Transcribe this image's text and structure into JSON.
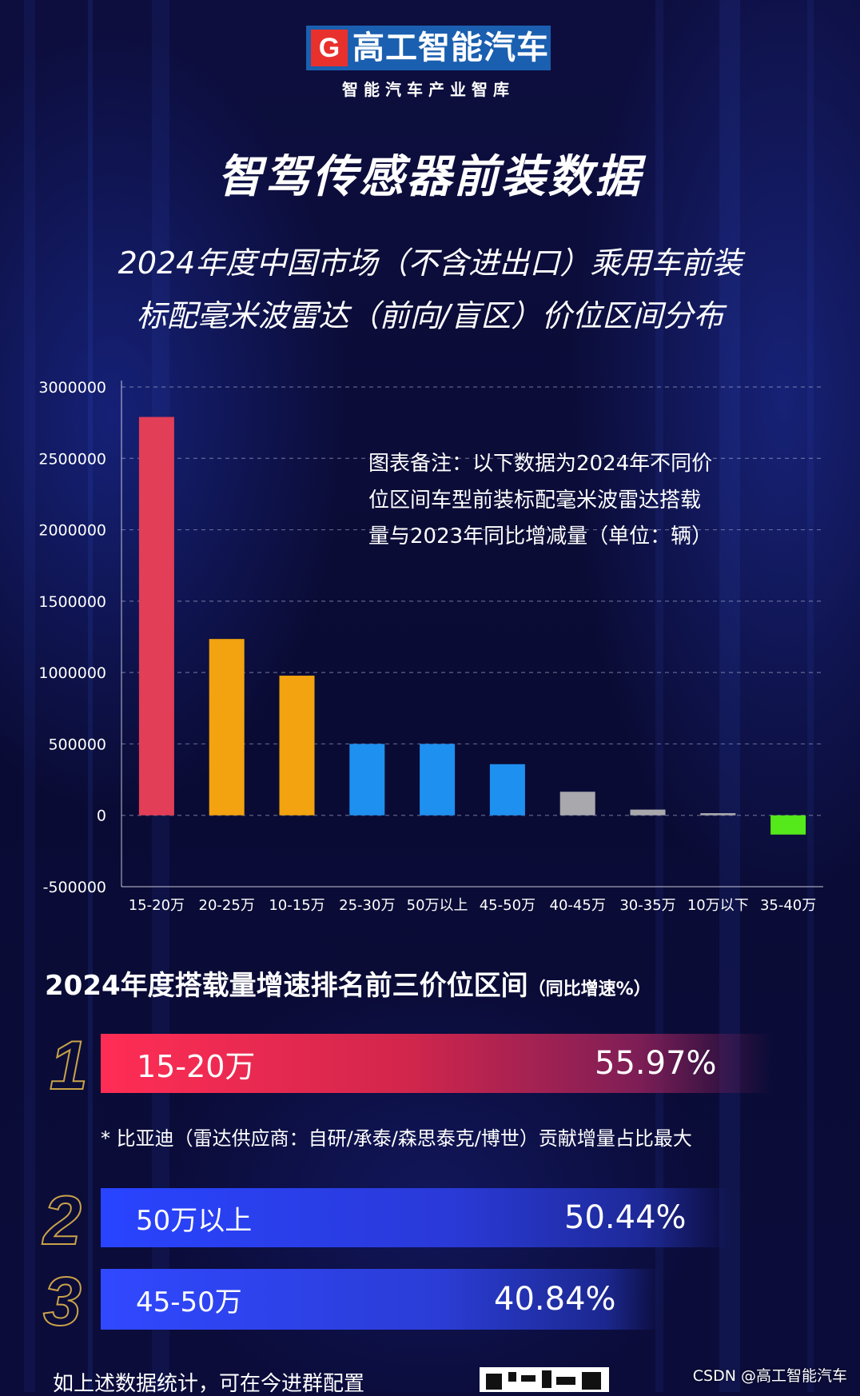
{
  "header": {
    "brand_mark": "G",
    "brand_name": "高工智能汽车",
    "brand_tagline": "智能汽车产业智库"
  },
  "title": "智驾传感器前装数据",
  "subtitle_lines": [
    "2024年度中国市场（不含进出口）乘用车前装",
    "标配毫米波雷达（前向/盲区）价位区间分布"
  ],
  "chart_note_lines": [
    "图表备注：以下数据为2024年不同价",
    "位区间车型前装标配毫米波雷达搭载",
    "量与2023年同比增减量（单位：辆）"
  ],
  "colors": {
    "red": "#e23e57",
    "orange": "#f2a30f",
    "blue": "#1e90f0",
    "gray": "#a8a8ad",
    "green": "#55e81a",
    "gold": "#c9a24a"
  },
  "chart_data": {
    "type": "bar",
    "title": "",
    "xlabel": "",
    "ylabel": "",
    "categories": [
      "15-20万",
      "20-25万",
      "10-15万",
      "25-30万",
      "50万以上",
      "45-50万",
      "40-45万",
      "30-35万",
      "10万以下",
      "35-40万"
    ],
    "values": [
      2790000,
      1235000,
      978000,
      500000,
      500000,
      358000,
      165000,
      40000,
      15000,
      -135000
    ],
    "bar_colors": [
      "red",
      "orange",
      "orange",
      "blue",
      "blue",
      "blue",
      "gray",
      "gray",
      "gray",
      "green"
    ],
    "ylim": [
      -500000,
      3000000
    ],
    "yticks": [
      -500000,
      0,
      500000,
      1000000,
      1500000,
      2000000,
      2500000,
      3000000
    ],
    "grid": "dashed horizontal",
    "legend": "none"
  },
  "ranking": {
    "title": "2024年度搭载量增速排名前三价位区间",
    "title_suffix": "（同比增速%）",
    "items": [
      {
        "rank": "1",
        "label": "15-20万",
        "value": "55.97%",
        "value_pct": 55.97
      },
      {
        "rank": "2",
        "label": "50万以上",
        "value": "50.44%",
        "value_pct": 50.44
      },
      {
        "rank": "3",
        "label": "45-50万",
        "value": "40.84%",
        "value_pct": 40.84
      }
    ],
    "footnote": "* 比亚迪（雷达供应商：自研/承泰/森思泰克/博世）贡献增量占比最大"
  },
  "footer": {
    "partial_text": "如上述数据统计，可在今进群配置",
    "watermark": "CSDN @高工智能汽车"
  }
}
